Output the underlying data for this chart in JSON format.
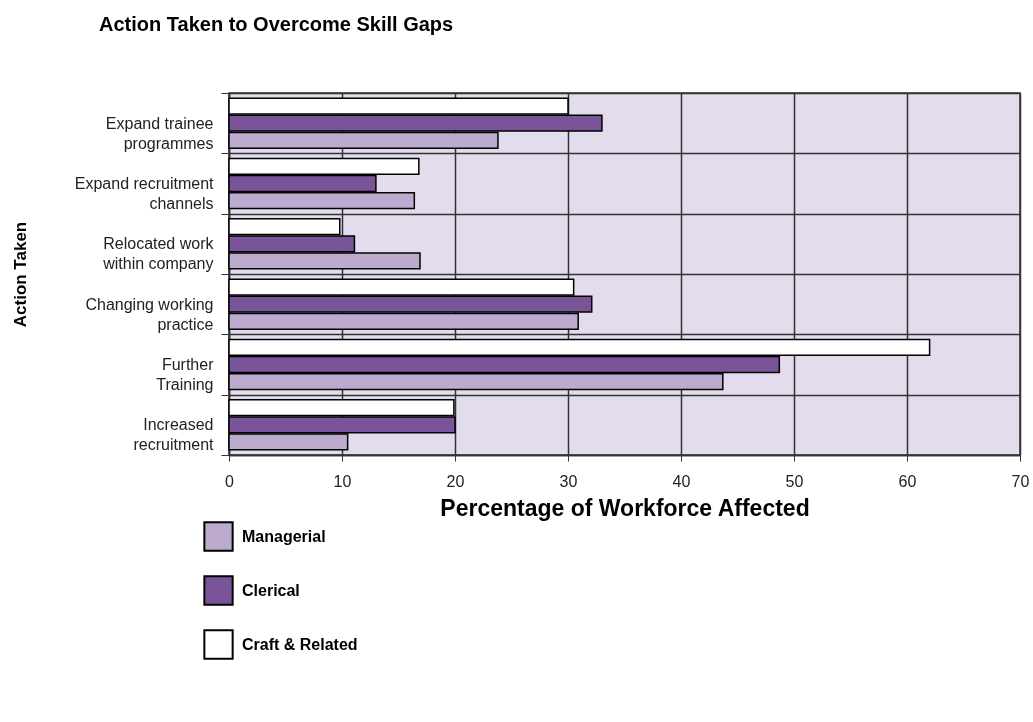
{
  "chart_data": {
    "type": "bar",
    "orientation": "horizontal",
    "title": "Action Taken to Overcome Skill Gaps",
    "xlabel": "Percentage of Workforce Affected",
    "ylabel": "Action Taken",
    "categories": [
      "Expand trainee programmes",
      "Expand recruitment channels",
      "Relocated work within company",
      "Changing working practice",
      "Further Training",
      "Increased recruitment"
    ],
    "series": [
      {
        "name": "Managerial",
        "color": "#bcaacf",
        "values": [
          23.8,
          16.4,
          16.9,
          30.9,
          43.7,
          10.5
        ]
      },
      {
        "name": "Clerical",
        "color": "#7a5499",
        "values": [
          33.0,
          13.0,
          11.1,
          32.1,
          48.7,
          20.0
        ]
      },
      {
        "name": "Craft & Related",
        "color": "#ffffff",
        "values": [
          30.0,
          16.8,
          9.8,
          30.5,
          62.0,
          19.9
        ]
      }
    ],
    "xlim": [
      0,
      70
    ],
    "xticks": [
      0,
      10,
      20,
      30,
      40,
      50,
      60,
      70
    ],
    "grid": true,
    "legend": "bottom left"
  }
}
